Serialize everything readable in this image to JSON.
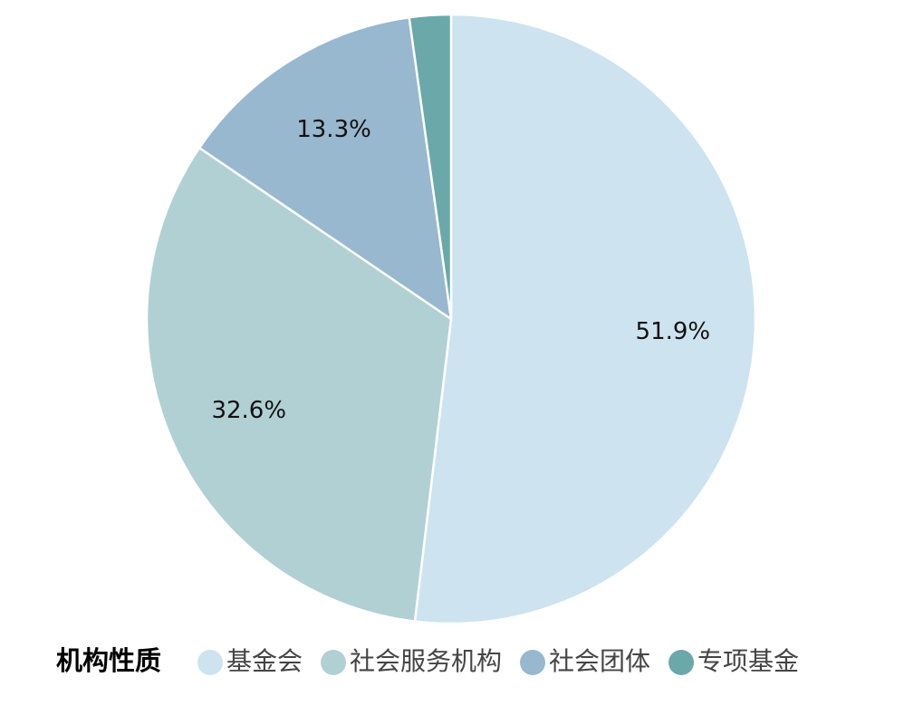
{
  "chart_data": {
    "type": "pie",
    "categories": [
      "基金会",
      "社会服务机构",
      "社会团体",
      "专项基金"
    ],
    "values": [
      51.9,
      32.6,
      13.3,
      2.2
    ],
    "value_labels": [
      "51.9%",
      "32.6%",
      "13.3%",
      null
    ],
    "colors": [
      "#cde3ef",
      "#b0d0d4",
      "#97b8ce",
      "#6aa8aa"
    ],
    "legend_title": "机构性质",
    "legend": "bottom"
  }
}
